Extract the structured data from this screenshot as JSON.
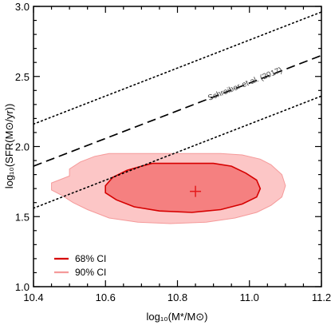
{
  "chart_data": {
    "type": "scatter",
    "xlabel": "log₁₀(M*/M⊙)",
    "ylabel": "log₁₀(SFR(M⊙/yr))",
    "xlim": [
      10.4,
      11.2
    ],
    "ylim": [
      1.0,
      3.0
    ],
    "xticks": [
      10.4,
      10.6,
      10.8,
      11.0,
      11.2
    ],
    "xtick_labels": [
      "10.4",
      "10.6",
      "10.8",
      "11.0",
      "11.2"
    ],
    "yticks": [
      1.0,
      1.5,
      2.0,
      2.5,
      3.0
    ],
    "ytick_labels": [
      "1.0",
      "1.5",
      "2.0",
      "2.5",
      "3.0"
    ],
    "grid": false,
    "best_fit": {
      "x": 10.85,
      "y": 1.68,
      "marker": "+",
      "color": "#e41a1c"
    },
    "regions": [
      {
        "name": "90% CI",
        "fill": "#fcc6c6",
        "stroke": "#f59a9a",
        "points": [
          [
            10.61,
            1.95
          ],
          [
            10.92,
            1.95
          ],
          [
            10.98,
            1.94
          ],
          [
            11.03,
            1.91
          ],
          [
            11.06,
            1.87
          ],
          [
            11.09,
            1.8
          ],
          [
            11.1,
            1.72
          ],
          [
            11.09,
            1.64
          ],
          [
            11.06,
            1.58
          ],
          [
            11.02,
            1.53
          ],
          [
            10.96,
            1.49
          ],
          [
            10.88,
            1.46
          ],
          [
            10.78,
            1.45
          ],
          [
            10.69,
            1.46
          ],
          [
            10.61,
            1.49
          ],
          [
            10.55,
            1.55
          ],
          [
            10.51,
            1.6
          ],
          [
            10.48,
            1.65
          ],
          [
            10.45,
            1.69
          ],
          [
            10.45,
            1.74
          ],
          [
            10.47,
            1.76
          ],
          [
            10.5,
            1.79
          ],
          [
            10.5,
            1.84
          ],
          [
            10.53,
            1.89
          ],
          [
            10.57,
            1.93
          ]
        ]
      },
      {
        "name": "68% CI",
        "fill": "#f58080",
        "stroke": "#d60000",
        "points": [
          [
            10.73,
            1.88
          ],
          [
            10.9,
            1.88
          ],
          [
            10.95,
            1.86
          ],
          [
            10.99,
            1.81
          ],
          [
            11.02,
            1.76
          ],
          [
            11.03,
            1.7
          ],
          [
            11.02,
            1.64
          ],
          [
            10.98,
            1.59
          ],
          [
            10.92,
            1.55
          ],
          [
            10.84,
            1.53
          ],
          [
            10.75,
            1.54
          ],
          [
            10.68,
            1.57
          ],
          [
            10.63,
            1.62
          ],
          [
            10.6,
            1.67
          ],
          [
            10.6,
            1.72
          ],
          [
            10.62,
            1.78
          ],
          [
            10.66,
            1.83
          ],
          [
            10.7,
            1.86
          ]
        ]
      }
    ],
    "lines": [
      {
        "style": "dotted",
        "x": [
          10.4,
          11.2
        ],
        "y": [
          2.16,
          2.96
        ]
      },
      {
        "style": "dashed",
        "x": [
          10.4,
          11.2
        ],
        "y": [
          1.86,
          2.65
        ]
      },
      {
        "style": "dotted",
        "x": [
          10.4,
          11.2
        ],
        "y": [
          1.56,
          2.36
        ]
      }
    ],
    "annotation": {
      "text": "Schreiber et al. (2017)",
      "x": 10.99,
      "y": 2.43
    },
    "legend": {
      "placement": "bottom-left",
      "entries": [
        {
          "label": "68% CI",
          "color": "#d60000"
        },
        {
          "label": "90% CI",
          "color": "#f59a9a"
        }
      ]
    }
  }
}
